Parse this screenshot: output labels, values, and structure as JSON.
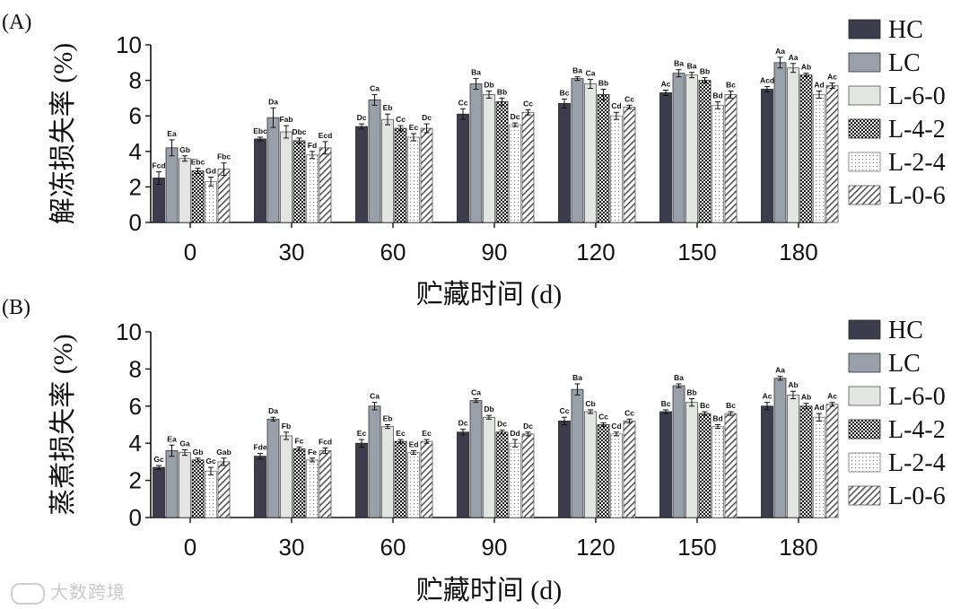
{
  "figure": {
    "watermark": "大数跨境"
  },
  "chart_data": [
    {
      "type": "bar",
      "panel_label": "(A)",
      "title": "",
      "xlabel": "贮藏时间 (d)",
      "ylabel": "解冻损失率 (%)",
      "ylim": [
        0,
        10
      ],
      "yticks": [
        "0",
        "2",
        "4",
        "6",
        "8",
        "10"
      ],
      "categories": [
        "0",
        "30",
        "60",
        "90",
        "120",
        "150",
        "180"
      ],
      "legend_position": "right",
      "series": [
        {
          "name": "HC",
          "values": [
            2.5,
            4.7,
            5.4,
            6.1,
            6.7,
            7.3,
            7.5
          ],
          "errors": [
            0.35,
            0.1,
            0.15,
            0.3,
            0.25,
            0.15,
            0.15
          ],
          "letters": [
            "Fcd",
            "Ebc",
            "Dc",
            "Cc",
            "Bc",
            "Ac",
            "Acd"
          ]
        },
        {
          "name": "LC",
          "values": [
            4.2,
            5.9,
            6.9,
            7.8,
            8.1,
            8.4,
            9.0
          ],
          "errors": [
            0.45,
            0.55,
            0.3,
            0.3,
            0.1,
            0.2,
            0.3
          ],
          "letters": [
            "Ea",
            "Da",
            "Ca",
            "Ba",
            "Ba",
            "Ba",
            "Aa"
          ]
        },
        {
          "name": "L-6-0",
          "values": [
            3.6,
            5.1,
            5.8,
            7.2,
            7.8,
            8.3,
            8.7
          ],
          "errors": [
            0.15,
            0.35,
            0.3,
            0.2,
            0.25,
            0.15,
            0.25
          ],
          "letters": [
            "Gb",
            "Fab",
            "Eb",
            "Db",
            "Ca",
            "Ba",
            "Aa"
          ]
        },
        {
          "name": "L-4-2",
          "values": [
            2.9,
            4.6,
            5.3,
            6.8,
            7.2,
            8.0,
            8.3
          ],
          "errors": [
            0.15,
            0.15,
            0.15,
            0.2,
            0.3,
            0.15,
            0.1
          ],
          "letters": [
            "Ebc",
            "Dbc",
            "Cc",
            "Bb",
            "Bb",
            "Bb",
            "Ab"
          ]
        },
        {
          "name": "L-2-4",
          "values": [
            2.3,
            3.8,
            4.8,
            5.5,
            6.0,
            6.6,
            7.2
          ],
          "errors": [
            0.25,
            0.2,
            0.2,
            0.1,
            0.2,
            0.2,
            0.2
          ],
          "letters": [
            "Gd",
            "Fd",
            "Ec",
            "Dc",
            "Cd",
            "Bd",
            "Ad"
          ]
        },
        {
          "name": "L-0-6",
          "values": [
            3.0,
            4.2,
            5.3,
            6.2,
            6.5,
            7.2,
            7.7
          ],
          "errors": [
            0.35,
            0.35,
            0.25,
            0.15,
            0.1,
            0.2,
            0.15
          ],
          "letters": [
            "Fbc",
            "Ecd",
            "Dc",
            "Cc",
            "Cc",
            "Bc",
            "Ac"
          ]
        }
      ]
    },
    {
      "type": "bar",
      "panel_label": "(B)",
      "title": "",
      "xlabel": "贮藏时间 (d)",
      "ylabel": "蒸煮损失率 (%)",
      "ylim": [
        0,
        10
      ],
      "yticks": [
        "0",
        "2",
        "4",
        "6",
        "8",
        "10"
      ],
      "categories": [
        "0",
        "30",
        "60",
        "90",
        "120",
        "150",
        "180"
      ],
      "legend_position": "right",
      "series": [
        {
          "name": "HC",
          "values": [
            2.7,
            3.3,
            4.0,
            4.6,
            5.2,
            5.7,
            6.0
          ],
          "errors": [
            0.1,
            0.15,
            0.2,
            0.15,
            0.2,
            0.1,
            0.2
          ],
          "letters": [
            "Gc",
            "Fde",
            "Ec",
            "Dc",
            "Cc",
            "Bc",
            "Ac"
          ]
        },
        {
          "name": "LC",
          "values": [
            3.6,
            5.3,
            6.0,
            6.3,
            6.9,
            7.1,
            7.5
          ],
          "errors": [
            0.3,
            0.1,
            0.2,
            0.1,
            0.3,
            0.1,
            0.1
          ],
          "letters": [
            "Ea",
            "Da",
            "Ca",
            "Ca",
            "Ba",
            "Ba",
            "Aa"
          ]
        },
        {
          "name": "L-6-0",
          "values": [
            3.5,
            4.4,
            4.9,
            5.4,
            5.7,
            6.2,
            6.6
          ],
          "errors": [
            0.15,
            0.2,
            0.1,
            0.1,
            0.1,
            0.2,
            0.2
          ],
          "letters": [
            "Ga",
            "Fb",
            "Eb",
            "Db",
            "Cb",
            "Bb",
            "Ab"
          ]
        },
        {
          "name": "L-4-2",
          "values": [
            3.1,
            3.7,
            4.1,
            4.6,
            5.0,
            5.6,
            6.0
          ],
          "errors": [
            0.1,
            0.1,
            0.1,
            0.1,
            0.1,
            0.1,
            0.15
          ],
          "letters": [
            "Gb",
            "Fc",
            "Ec",
            "Dc",
            "Cc",
            "Bc",
            "Ab"
          ]
        },
        {
          "name": "L-2-4",
          "values": [
            2.5,
            3.1,
            3.5,
            4.0,
            4.5,
            4.9,
            5.4
          ],
          "errors": [
            0.2,
            0.1,
            0.1,
            0.2,
            0.1,
            0.1,
            0.2
          ],
          "letters": [
            "Gc",
            "Fe",
            "Ed",
            "Dd",
            "Cd",
            "Bd",
            "Ad"
          ]
        },
        {
          "name": "L-0-6",
          "values": [
            3.0,
            3.6,
            4.1,
            4.5,
            5.2,
            5.6,
            6.1
          ],
          "errors": [
            0.2,
            0.15,
            0.1,
            0.1,
            0.1,
            0.1,
            0.1
          ],
          "letters": [
            "Gab",
            "Fcd",
            "Ec",
            "Dc",
            "Cc",
            "Bc",
            "Ac"
          ]
        }
      ]
    }
  ]
}
